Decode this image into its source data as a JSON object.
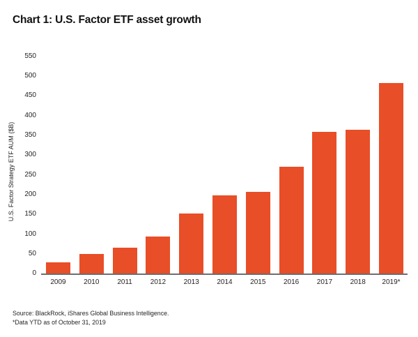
{
  "page": {
    "title": "Chart 1: U.S. Factor ETF asset growth"
  },
  "footer": {
    "source": "Source: BlackRock, iShares Global Business Intelligence.",
    "footnote": "*Data YTD as of October 31, 2019"
  },
  "colors": {
    "bar": "#E84E27",
    "axis_line": "#6D6E71",
    "text": "#231F20",
    "background": "#FFFFFF"
  },
  "chart_data": {
    "type": "bar",
    "title": "Chart 1: U.S. Factor ETF asset growth",
    "ylabel": "U.S. Factor Strategy ETF AUM ($B)",
    "xlabel": "",
    "categories": [
      "2009",
      "2010",
      "2011",
      "2012",
      "2013",
      "2014",
      "2015",
      "2016",
      "2017",
      "2018",
      "2019*"
    ],
    "values": [
      27,
      49,
      64,
      93,
      152,
      198,
      206,
      270,
      358,
      364,
      481
    ],
    "ylim": [
      0,
      550
    ],
    "ytick_step": 50,
    "grid": false,
    "legend": "none"
  }
}
